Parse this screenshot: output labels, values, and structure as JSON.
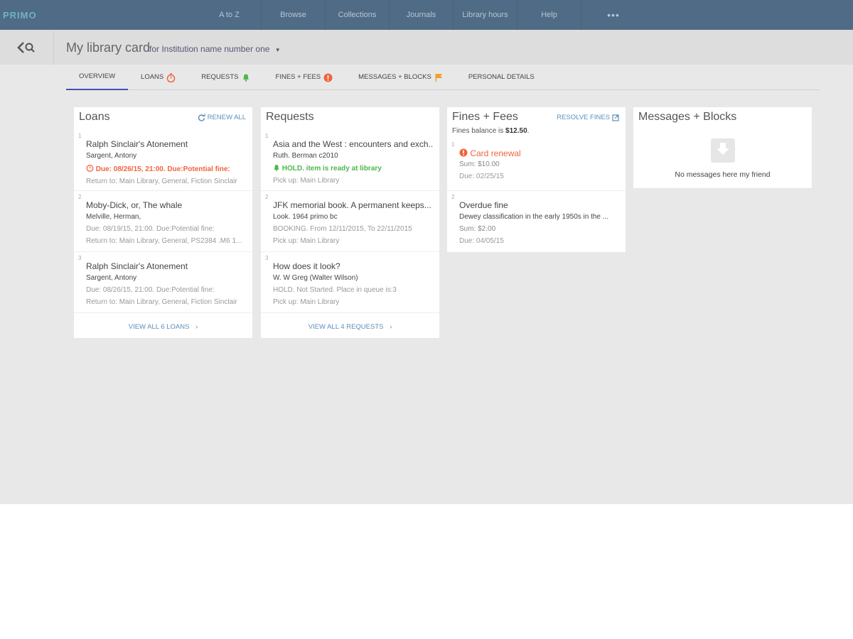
{
  "app": {
    "logo": "PRIMO"
  },
  "nav": [
    "A to Z",
    "Browse",
    "Collections",
    "Journals",
    "Library hours",
    "Help",
    "•••"
  ],
  "header": {
    "title": "My library card",
    "institution": "for Institution name number one"
  },
  "tabs": [
    {
      "label": "OVERVIEW",
      "icon": "none"
    },
    {
      "label": "LOANS",
      "icon": "stopwatch-icon"
    },
    {
      "label": "REQUESTS",
      "icon": "bell-icon"
    },
    {
      "label": "FINES + FEES",
      "icon": "alert-icon"
    },
    {
      "label": "MESSAGES + BLOCKS",
      "icon": "flag-icon"
    },
    {
      "label": "PERSONAL DETAILS",
      "icon": "none"
    }
  ],
  "colors": {
    "topbar": "#4f6b85",
    "accent": "#5d8fb8",
    "red": "#f0643c",
    "green": "#4cb84c",
    "flag": "#f0a030",
    "tab_active": "#3f51b5"
  },
  "loans": {
    "title": "Loans",
    "action": "RENEW ALL",
    "footer": "VIEW ALL 6 LOANS",
    "items": [
      {
        "n": "1",
        "title": "Ralph Sinclair's Atonement",
        "author": "Sargent, Antony",
        "due": "Due: 08/26/15, 21:00. Due:Potential fine:",
        "return": "Return to: Main Library, General, Fiction Sinclair"
      },
      {
        "n": "2",
        "title": "Moby-Dick, or, The whale",
        "author": "Melville, Herman,",
        "due": "Due: 08/19/15, 21:00. Due:Potential fine:",
        "return": "Return to: Main Library, General, PS2384 .M6 1..."
      },
      {
        "n": "3",
        "title": "Ralph Sinclair's Atonement",
        "author": "Sargent, Antony",
        "due": "Due: 08/26/15, 21:00. Due:Potential fine:",
        "return": "Return to: Main Library, General, Fiction Sinclair"
      }
    ]
  },
  "requests": {
    "title": "Requests",
    "footer": "VIEW ALL 4 REQUESTS",
    "items": [
      {
        "n": "1",
        "title": "Asia and the West : encounters and exch...",
        "author": "Ruth. Berman c2010",
        "status": "HOLD. item is ready at library",
        "pickup": "Pick up: Main Library"
      },
      {
        "n": "2",
        "title": "JFK memorial book. A permanent keeps...",
        "author": "Look. 1964 primo bc",
        "status": "BOOKING. From 12/11/2015, To 22/11/2015",
        "pickup": "Pick up: Main Library"
      },
      {
        "n": "3",
        "title": "How does it look?",
        "author": "W. W Greg (Walter Wilson)",
        "status": "HOLD. Not Started. Place in queue is:3",
        "pickup": "Pick up: Main Library"
      }
    ]
  },
  "fines": {
    "title": "Fines + Fees",
    "action": "RESOLVE FINES",
    "balance_label": "Fines balance is ",
    "balance": "$12.50",
    "balance_end": ".",
    "items": [
      {
        "n": "1",
        "title": "Card renewal",
        "desc": "",
        "sum": "Sum: $10.00",
        "due": "Due: 02/25/15"
      },
      {
        "n": "2",
        "title": "Overdue fine",
        "desc": "Dewey classification in the early 1950s in the ...",
        "sum": "Sum: $2.00",
        "due": "Due: 04/05/15"
      }
    ]
  },
  "messages": {
    "title": "Messages + Blocks",
    "empty": "No messages here my friend"
  }
}
